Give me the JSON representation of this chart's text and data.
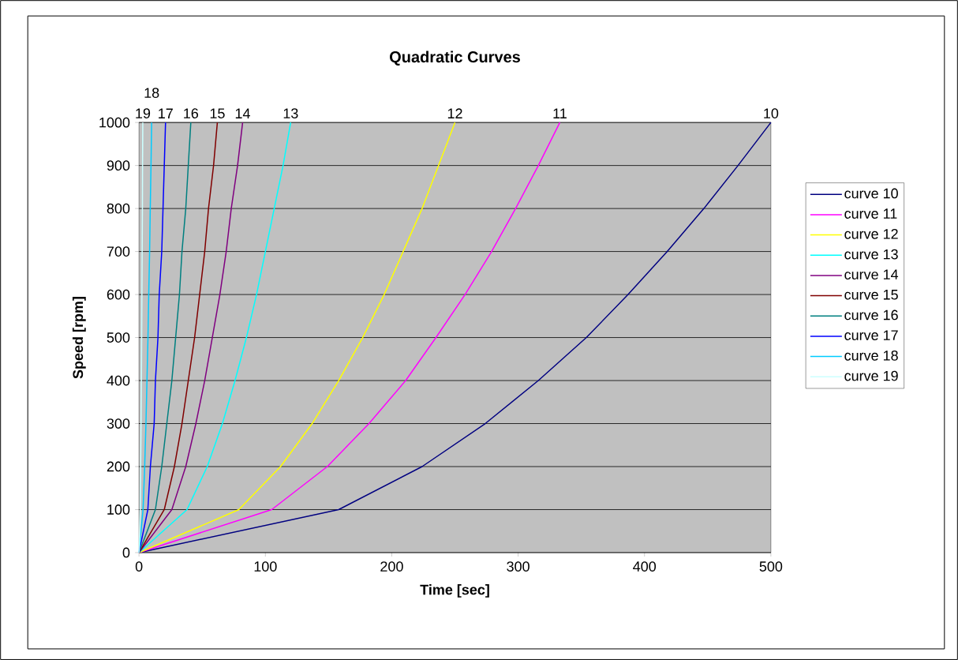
{
  "chart_data": {
    "type": "line",
    "title": "Quadratic Curves",
    "xlabel": "Time [sec]",
    "ylabel": "Speed [rpm]",
    "xlim": [
      0,
      500
    ],
    "ylim": [
      0,
      1000
    ],
    "xticks": [
      0,
      100,
      200,
      300,
      400,
      500
    ],
    "yticks": [
      0,
      100,
      200,
      300,
      400,
      500,
      600,
      700,
      800,
      900,
      1000
    ],
    "grid": "y",
    "legend": "right",
    "marker": "none",
    "line_style": "solid",
    "series": [
      {
        "name": "curve 10",
        "color": "#000080",
        "x": [
          0,
          158,
          224,
          274,
          316,
          354,
          387,
          418,
          447,
          474,
          500
        ],
        "values": [
          0,
          100,
          200,
          300,
          400,
          500,
          600,
          700,
          800,
          900,
          1000
        ]
      },
      {
        "name": "curve 11",
        "color": "#ff00ff",
        "x": [
          0,
          105,
          149,
          182,
          211,
          235,
          258,
          279,
          298,
          316,
          333
        ],
        "values": [
          0,
          100,
          200,
          300,
          400,
          500,
          600,
          700,
          800,
          900,
          1000
        ]
      },
      {
        "name": "curve 12",
        "color": "#ffff00",
        "x": [
          0,
          79,
          112,
          137,
          158,
          177,
          194,
          209,
          224,
          237,
          250
        ],
        "values": [
          0,
          100,
          200,
          300,
          400,
          500,
          600,
          700,
          800,
          900,
          1000
        ]
      },
      {
        "name": "curve 13",
        "color": "#00ffff",
        "x": [
          0,
          38,
          54,
          66,
          76,
          85,
          93,
          100,
          107,
          114,
          120
        ],
        "values": [
          0,
          100,
          200,
          300,
          400,
          500,
          600,
          700,
          800,
          900,
          1000
        ]
      },
      {
        "name": "curve 14",
        "color": "#800080",
        "x": [
          0,
          26,
          37,
          45,
          52,
          58,
          64,
          69,
          73,
          78,
          82
        ],
        "values": [
          0,
          100,
          200,
          300,
          400,
          500,
          600,
          700,
          800,
          900,
          1000
        ]
      },
      {
        "name": "curve 15",
        "color": "#800000",
        "x": [
          0,
          20,
          28,
          34,
          39,
          44,
          48,
          52,
          55,
          59,
          62
        ],
        "values": [
          0,
          100,
          200,
          300,
          400,
          500,
          600,
          700,
          800,
          900,
          1000
        ]
      },
      {
        "name": "curve 16",
        "color": "#008080",
        "x": [
          0,
          13,
          18,
          22,
          26,
          29,
          32,
          34,
          37,
          39,
          41
        ],
        "values": [
          0,
          100,
          200,
          300,
          400,
          500,
          600,
          700,
          800,
          900,
          1000
        ]
      },
      {
        "name": "curve 17",
        "color": "#0000ff",
        "x": [
          0,
          7,
          9,
          12,
          13,
          15,
          16,
          18,
          19,
          20,
          21
        ],
        "values": [
          0,
          100,
          200,
          300,
          400,
          500,
          600,
          700,
          800,
          900,
          1000
        ]
      },
      {
        "name": "curve 18",
        "color": "#00ccff",
        "x": [
          0,
          3.2,
          4.5,
          5.5,
          6.3,
          7.1,
          7.7,
          8.4,
          8.9,
          9.5,
          10
        ],
        "values": [
          0,
          100,
          200,
          300,
          400,
          500,
          600,
          700,
          800,
          900,
          1000
        ]
      },
      {
        "name": "curve 19",
        "color": "#ccffff",
        "x": [
          0,
          1,
          1.3,
          1.6,
          1.9,
          2.1,
          2.3,
          2.5,
          2.7,
          2.8,
          3
        ],
        "values": [
          0,
          100,
          200,
          300,
          400,
          500,
          600,
          700,
          800,
          900,
          1000
        ]
      }
    ],
    "annotations": [
      {
        "text": "19",
        "x": 3,
        "y": 1000
      },
      {
        "text": "18",
        "x": 10,
        "y": 1000
      },
      {
        "text": "17",
        "x": 21,
        "y": 1000
      },
      {
        "text": "16",
        "x": 41,
        "y": 1000
      },
      {
        "text": "15",
        "x": 62,
        "y": 1000
      },
      {
        "text": "14",
        "x": 82,
        "y": 1000
      },
      {
        "text": "13",
        "x": 120,
        "y": 1000
      },
      {
        "text": "12",
        "x": 250,
        "y": 1000
      },
      {
        "text": "11",
        "x": 333,
        "y": 1000
      },
      {
        "text": "10",
        "x": 500,
        "y": 1000
      }
    ]
  }
}
